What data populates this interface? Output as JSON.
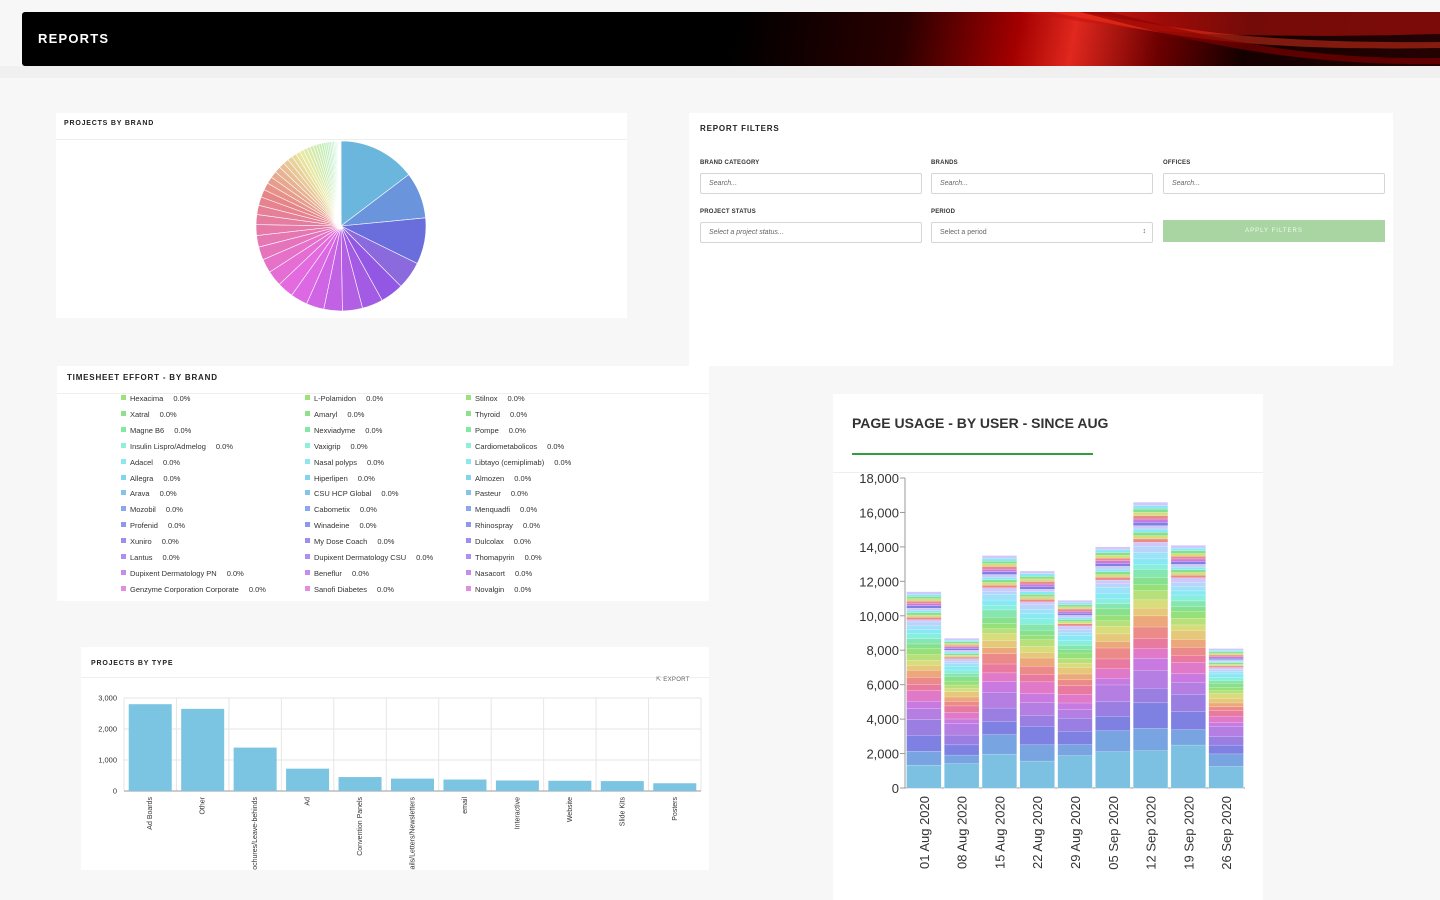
{
  "header": {
    "title": "REPORTS"
  },
  "projects_by_brand": {
    "title": "PROJECTS BY BRAND"
  },
  "filters": {
    "title": "REPORT FILTERS",
    "brand_category_label": "BRAND CATEGORY",
    "brand_category_placeholder": "Search...",
    "brands_label": "BRANDS",
    "brands_placeholder": "Search...",
    "offices_label": "OFFICES",
    "offices_placeholder": "Search...",
    "project_status_label": "PROJECT STATUS",
    "project_status_placeholder": "Select a project status...",
    "period_label": "PERIOD",
    "period_value": "Select a period",
    "apply_label": "APPLY FILTERS"
  },
  "timesheet": {
    "title": "TIMESHEET EFFORT - BY BRAND",
    "columns": [
      [
        {
          "name": "Hexacima",
          "value": "0.0%",
          "color": "#9ee07a"
        },
        {
          "name": "Xatral",
          "value": "0.0%",
          "color": "#8fe08a"
        },
        {
          "name": "Magne B6",
          "value": "0.0%",
          "color": "#86e6a4"
        },
        {
          "name": "Insulin Lispro/Admelog",
          "value": "0.0%",
          "color": "#8ef0d8"
        },
        {
          "name": "Adacel",
          "value": "0.0%",
          "color": "#8ee6ee"
        },
        {
          "name": "Allegra",
          "value": "0.0%",
          "color": "#84d4ee"
        },
        {
          "name": "Arava",
          "value": "0.0%",
          "color": "#86c2ee"
        },
        {
          "name": "Mozobil",
          "value": "0.0%",
          "color": "#8aa8ee"
        },
        {
          "name": "Profenid",
          "value": "0.0%",
          "color": "#8e96ee"
        },
        {
          "name": "Xuniro",
          "value": "0.0%",
          "color": "#9a8eee"
        },
        {
          "name": "Lantus",
          "value": "0.0%",
          "color": "#b08eee"
        },
        {
          "name": "Dupixent Dermatology PN",
          "value": "0.0%",
          "color": "#c48ee8"
        },
        {
          "name": "Genzyme Corporation Corporate",
          "value": "0.0%",
          "color": "#e08ee0"
        }
      ],
      [
        {
          "name": "L-Polamidon",
          "value": "0.0%",
          "color": "#9ee07a"
        },
        {
          "name": "Amaryl",
          "value": "0.0%",
          "color": "#8fe08a"
        },
        {
          "name": "Nexviadyme",
          "value": "0.0%",
          "color": "#86e6a4"
        },
        {
          "name": "Vaxigrip",
          "value": "0.0%",
          "color": "#8ef0d8"
        },
        {
          "name": "Nasal polyps",
          "value": "0.0%",
          "color": "#8ee6ee"
        },
        {
          "name": "Hiperlipen",
          "value": "0.0%",
          "color": "#84d4ee"
        },
        {
          "name": "CSU HCP Global",
          "value": "0.0%",
          "color": "#86c2ee"
        },
        {
          "name": "Cabometix",
          "value": "0.0%",
          "color": "#8aa8ee"
        },
        {
          "name": "Winadeine",
          "value": "0.0%",
          "color": "#8e96ee"
        },
        {
          "name": "My Dose Coach",
          "value": "0.0%",
          "color": "#9a8eee"
        },
        {
          "name": "Dupixent Dermatology CSU",
          "value": "0.0%",
          "color": "#b08eee"
        },
        {
          "name": "Beneflur",
          "value": "0.0%",
          "color": "#c48ee8"
        },
        {
          "name": "Sanofi Diabetes",
          "value": "0.0%",
          "color": "#e08ee0"
        }
      ],
      [
        {
          "name": "Stilnox",
          "value": "0.0%",
          "color": "#9ee07a"
        },
        {
          "name": "Thyroid",
          "value": "0.0%",
          "color": "#8fe08a"
        },
        {
          "name": "Pompe",
          "value": "0.0%",
          "color": "#86e6a4"
        },
        {
          "name": "Cardiometabolicos",
          "value": "0.0%",
          "color": "#8ef0d8"
        },
        {
          "name": "Libtayo (cemiplimab)",
          "value": "0.0%",
          "color": "#8ee6ee"
        },
        {
          "name": "Almozen",
          "value": "0.0%",
          "color": "#84d4ee"
        },
        {
          "name": "Pasteur",
          "value": "0.0%",
          "color": "#86c2ee"
        },
        {
          "name": "Menquadfi",
          "value": "0.0%",
          "color": "#8aa8ee"
        },
        {
          "name": "Rhinospray",
          "value": "0.0%",
          "color": "#8e96ee"
        },
        {
          "name": "Dulcolax",
          "value": "0.0%",
          "color": "#9a8eee"
        },
        {
          "name": "Thomapyrin",
          "value": "0.0%",
          "color": "#b08eee"
        },
        {
          "name": "Nasacort",
          "value": "0.0%",
          "color": "#c48ee8"
        },
        {
          "name": "Novalgin",
          "value": "0.0%",
          "color": "#e08ee0"
        }
      ]
    ]
  },
  "projects_by_type": {
    "title": "PROJECTS BY TYPE",
    "export_label": "EXPORT"
  },
  "page_usage": {
    "title": "PAGE USAGE - BY USER - SINCE AUG"
  },
  "chart_data": [
    {
      "type": "pie",
      "title": "PROJECTS BY BRAND",
      "note": "large number of small unlabeled slices",
      "values": [
        100,
        60,
        60,
        36,
        30,
        27,
        26,
        24,
        23,
        22,
        21,
        20,
        18,
        17,
        15,
        14,
        13,
        12,
        11,
        10,
        9.5,
        9,
        8.5,
        8,
        7.5,
        7,
        6.5,
        6,
        5.6,
        5.2,
        4.8,
        4.5,
        4.2,
        3.9,
        3.6,
        3.3,
        3,
        2.8,
        2.6,
        2.4,
        2.2,
        2,
        1.8,
        1.6,
        1.4,
        1.2,
        1,
        0.9,
        0.8,
        0.7,
        0.6,
        0.5
      ],
      "first_colors": [
        "#6ab6dc",
        "#6a94dc",
        "#6a6edc",
        "#8a6adc"
      ]
    },
    {
      "type": "bar",
      "title": "PROJECTS BY TYPE",
      "categories": [
        "Ad Boards",
        "Other",
        "Brochures/Leave-behinds",
        "Ad",
        "Convention Panels",
        "Emails/Letters/Newsletters",
        "email",
        "Interactive",
        "Website",
        "Slide Kits",
        "Posters"
      ],
      "values": [
        2800,
        2650,
        1400,
        720,
        450,
        400,
        370,
        340,
        330,
        320,
        250
      ],
      "ylim": [
        0,
        3000
      ],
      "yticks": [
        "3,000",
        "2,000",
        "1,000",
        "0"
      ],
      "color": "#7cc5e2"
    },
    {
      "type": "bar",
      "stacked": true,
      "title": "PAGE USAGE - BY USER - SINCE AUG",
      "categories": [
        "01 Aug 2020",
        "08 Aug 2020",
        "15 Aug 2020",
        "22 Aug 2020",
        "29 Aug 2020",
        "05 Sep 2020",
        "12 Sep 2020",
        "19 Sep 2020",
        "26 Sep 2020"
      ],
      "totals": [
        11400,
        8700,
        13500,
        12600,
        10900,
        14000,
        16600,
        14100,
        8100
      ],
      "ylim": [
        0,
        18000
      ],
      "yticks": [
        "18,000",
        "16,000",
        "14,000",
        "12,000",
        "10,000",
        "8,000",
        "6,000",
        "4,000",
        "2,000",
        "0"
      ],
      "series_colors": [
        "#7cc0e2",
        "#78a4e2",
        "#7e80e2",
        "#9a7ee2",
        "#b47ee2",
        "#c87ae0",
        "#e07ac8",
        "#e87aa0",
        "#ec8a8a",
        "#eca87a",
        "#e6c87a",
        "#d8dc7a",
        "#b8e07a",
        "#96e07a",
        "#86e08e",
        "#86e6b0",
        "#88eede",
        "#88e8f4",
        "#9ee2fa",
        "#b8d4fa",
        "#d0c8fa"
      ]
    }
  ]
}
